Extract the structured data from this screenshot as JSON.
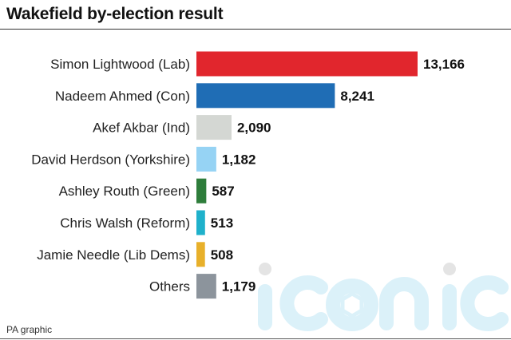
{
  "header": {
    "title": "Wakefield by-election result"
  },
  "footer": {
    "source": "PA graphic"
  },
  "watermark": {
    "text": "iconic"
  },
  "chart_data": {
    "type": "bar",
    "orientation": "horizontal",
    "title": "Wakefield by-election result",
    "xlabel": "",
    "ylabel": "",
    "grid": false,
    "categories": [
      "Simon Lightwood (Lab)",
      "Nadeem Ahmed (Con)",
      "Akef Akbar (Ind)",
      "David Herdson (Yorkshire)",
      "Ashley Routh (Green)",
      "Chris Walsh (Reform)",
      "Jamie Needle (Lib Dems)",
      "Others"
    ],
    "values": [
      13166,
      8241,
      2090,
      1182,
      587,
      513,
      508,
      1179
    ],
    "value_labels": [
      "13,166",
      "8,241",
      "2,090",
      "1,182",
      "587",
      "513",
      "508",
      "1,179"
    ],
    "colors": [
      "#e1262d",
      "#1f6db5",
      "#d4d7d3",
      "#96d3f4",
      "#2e7d3b",
      "#1fb1cb",
      "#e8b02a",
      "#8c949c"
    ]
  }
}
